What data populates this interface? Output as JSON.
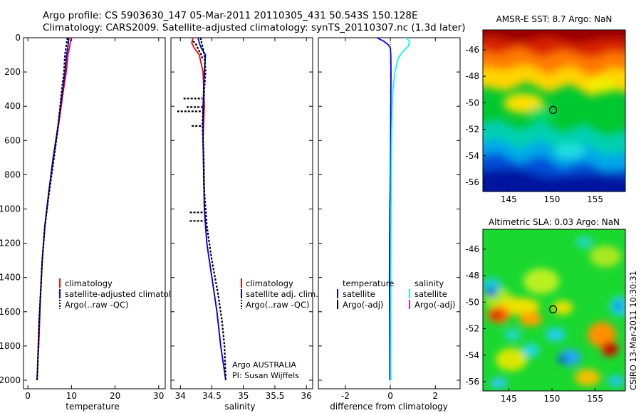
{
  "header": {
    "line1": "Argo profile: CS 5903630_147 05-Mar-2011 20110305_431 50.543S 150.128E",
    "line2": "Climatology: CARS2009. Satellite-adjusted climatology: synTS_20110307.nc (1.3d later)"
  },
  "side_label": "CSIRO 13-Mar-2011 10:30:31",
  "colors": {
    "climatology": "#ff0000",
    "satellite": "#0000ff",
    "argo": "#000000",
    "sal_satellite": "#00ffff",
    "sal_argo_adj": "#ff00ff"
  },
  "chart_data": [
    {
      "type": "line",
      "xlabel": "temperature",
      "ylabel": "",
      "xlim": [
        -1,
        31.5
      ],
      "ylim": [
        2050,
        0
      ],
      "xticks": [
        0,
        10,
        20,
        30
      ],
      "yticks": [
        0,
        200,
        400,
        600,
        800,
        1000,
        1200,
        1400,
        1600,
        1800,
        2000
      ],
      "legend": [
        "climatology",
        "satellite-adjusted climatology",
        "Argo(..raw -QC)"
      ],
      "series": [
        {
          "name": "climatology",
          "color": "#ff0000",
          "x": [
            9.9,
            9.6,
            9.2,
            8.8,
            8.2,
            7.1,
            5.9,
            4.8,
            3.9,
            3.3,
            2.9,
            2.7,
            2.5,
            2.3
          ],
          "y": [
            0,
            50,
            100,
            200,
            300,
            500,
            700,
            900,
            1100,
            1300,
            1500,
            1650,
            1800,
            1870
          ]
        },
        {
          "name": "satellite-adjusted climatology",
          "color": "#0000ff",
          "x": [
            9.4,
            9.2,
            8.9,
            8.5,
            8.0,
            7.0,
            5.8,
            4.8,
            3.9,
            3.3,
            2.9,
            2.6,
            2.4,
            2.2,
            2.1
          ],
          "y": [
            0,
            50,
            100,
            200,
            300,
            500,
            700,
            900,
            1100,
            1300,
            1500,
            1650,
            1800,
            1950,
            2000
          ]
        },
        {
          "name": "Argo(..raw -QC)",
          "color": "#000000",
          "dashed": true,
          "x": [
            9.1,
            8.8,
            8.5,
            8.3,
            7.8,
            7.0,
            6.0,
            4.9,
            3.9,
            3.3,
            2.9,
            2.6,
            2.4,
            2.2,
            2.1
          ],
          "y": [
            0,
            50,
            100,
            200,
            300,
            500,
            700,
            900,
            1100,
            1300,
            1500,
            1650,
            1800,
            1950,
            2000
          ]
        }
      ]
    },
    {
      "type": "line",
      "xlabel": "salinity",
      "ylabel": "",
      "xlim": [
        33.85,
        36.1
      ],
      "ylim": [
        2050,
        0
      ],
      "xticks": [
        34,
        34.5,
        35,
        35.5,
        36
      ],
      "xticklabels": [
        "34",
        "34.5",
        "35",
        "35.5",
        "36"
      ],
      "legend": [
        "climatology",
        "satellite adj. clim.",
        "Argo(..raw -QC)"
      ],
      "annotation": [
        "Argo AUSTRALIA",
        "PI: Susan Wijffels"
      ],
      "series": [
        {
          "name": "climatology",
          "color": "#ff0000",
          "x": [
            34.2,
            34.18,
            34.22,
            34.3,
            34.36,
            34.38,
            34.36,
            34.37,
            34.38,
            34.42,
            34.5,
            34.58,
            34.64,
            34.68
          ],
          "y": [
            0,
            30,
            60,
            100,
            200,
            400,
            600,
            800,
            1000,
            1200,
            1400,
            1600,
            1800,
            1900
          ]
        },
        {
          "name": "satellite adj. clim.",
          "color": "#0000ff",
          "x": [
            34.28,
            34.3,
            34.33,
            34.4,
            34.38,
            34.36,
            34.36,
            34.37,
            34.38,
            34.42,
            34.5,
            34.58,
            34.64,
            34.7,
            34.72
          ],
          "y": [
            0,
            30,
            60,
            100,
            200,
            400,
            600,
            800,
            1000,
            1200,
            1400,
            1600,
            1800,
            1950,
            2000
          ]
        },
        {
          "name": "Argo(..raw -QC)",
          "color": "#000000",
          "dashed": true,
          "x": [
            34.32,
            34.35,
            34.38,
            34.4,
            34.38,
            34.35,
            34.37,
            34.38,
            34.42,
            34.5,
            34.6,
            34.66,
            34.7,
            34.72
          ],
          "y": [
            0,
            50,
            100,
            200,
            300,
            500,
            700,
            900,
            1100,
            1300,
            1500,
            1650,
            1800,
            2000
          ]
        },
        {
          "name": "Argo(..raw -QC)",
          "color": "#000000",
          "dashed": true,
          "x": [
            34.2,
            34.25,
            34.3,
            34.32,
            34.35
          ],
          "y": [
            20,
            40,
            80,
            90,
            120
          ]
        },
        {
          "name": "Argo(..raw -QC)",
          "color": "#000000",
          "dashed": true,
          "x": [
            34.05,
            34.35
          ],
          "y": [
            355,
            355
          ]
        },
        {
          "name": "Argo(..raw -QC)",
          "color": "#000000",
          "dashed": true,
          "x": [
            34.1,
            34.35
          ],
          "y": [
            405,
            405
          ]
        },
        {
          "name": "Argo(..raw -QC)",
          "color": "#000000",
          "dashed": true,
          "x": [
            33.95,
            34.35
          ],
          "y": [
            430,
            430
          ]
        },
        {
          "name": "Argo(..raw -QC)",
          "color": "#000000",
          "dashed": true,
          "x": [
            34.18,
            34.35
          ],
          "y": [
            515,
            515
          ]
        },
        {
          "name": "Argo(..raw -QC)",
          "color": "#000000",
          "dashed": true,
          "x": [
            34.15,
            34.38
          ],
          "y": [
            1020,
            1020
          ]
        },
        {
          "name": "Argo(..raw -QC)",
          "color": "#000000",
          "dashed": true,
          "x": [
            34.15,
            34.38
          ],
          "y": [
            1070,
            1070
          ]
        }
      ]
    },
    {
      "type": "line",
      "xlabel": "difference from climatology",
      "ylabel": "",
      "xlim": [
        -3.2,
        3.1
      ],
      "ylim": [
        2050,
        0
      ],
      "xticks": [
        -2,
        0,
        2
      ],
      "legend_temp_title": "temperature",
      "legend_sal_title": "salinity",
      "legend_temp": [
        "satellite",
        "Argo(-adj)"
      ],
      "legend_sal": [
        "satellite",
        "Argo(-adj)"
      ],
      "series": [
        {
          "name": "satellite",
          "color": "#0000ff",
          "x": [
            -0.6,
            -0.3,
            -0.1,
            0.0,
            0.02,
            0.03,
            0.02,
            0.01,
            0.0,
            -0.02,
            -0.03,
            -0.04,
            -0.03,
            -0.02
          ],
          "y": [
            0,
            20,
            40,
            60,
            100,
            200,
            400,
            600,
            800,
            1000,
            1200,
            1400,
            1600,
            2000
          ]
        },
        {
          "name": "satellite",
          "color": "#00ffff",
          "x": [
            0.7,
            0.85,
            0.8,
            0.55,
            0.35,
            0.2,
            0.12,
            0.08,
            0.05,
            0.04,
            0.03,
            0.02,
            0.02,
            0.02
          ],
          "y": [
            0,
            20,
            50,
            80,
            120,
            200,
            300,
            400,
            600,
            800,
            1000,
            1400,
            1800,
            2000
          ]
        }
      ]
    },
    {
      "type": "heatmap",
      "title": "AMSR-E SST: 8.7 Argo: NaN",
      "xlim": [
        142,
        158.5
      ],
      "ylim": [
        -56.7,
        -44.5
      ],
      "xticks": [
        145,
        150,
        155
      ],
      "yticks": [
        -46,
        -48,
        -50,
        -52,
        -54,
        -56
      ],
      "marker": {
        "x": 150.128,
        "y": -50.543
      }
    },
    {
      "type": "heatmap",
      "title": "Altimetric SLA: 0.03 Argo: NaN",
      "xlim": [
        142,
        158.5
      ],
      "ylim": [
        -56.7,
        -44.5
      ],
      "xticks": [
        145,
        150,
        155
      ],
      "yticks": [
        -46,
        -48,
        -50,
        -52,
        -54,
        -56
      ],
      "marker": {
        "x": 150.128,
        "y": -50.543
      }
    }
  ]
}
